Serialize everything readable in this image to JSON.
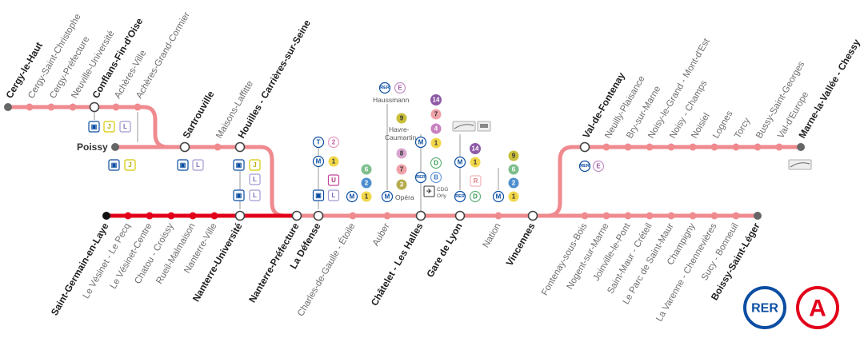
{
  "colors": {
    "line_light": "#ef8a8f",
    "line_dark": "#e2001a",
    "station_light": "#ef8a8f",
    "station_dark": "#e2001a",
    "terminus": "#666666",
    "rer_blue": "#0b4ea2",
    "rer_red": "#e2001a"
  },
  "branches": {
    "cergy": [
      "Cergy-le-Haut",
      "Cergy-Saint-Christophe",
      "Cergy-Préfecture",
      "Neuville-Université",
      "Conflans-Fin-d'Oise",
      "Achères-Ville",
      "Achères-Grand-Cormier",
      "Maisons-Laffitte"
    ],
    "poissy": [
      "Poissy",
      "Sartrouville",
      "Houilles - Carrières-sur-Seine"
    ],
    "saint_germain": [
      "Saint-Germain-en-Laye",
      "Le Vésinet - Le Pecq",
      "Le Vésinet-Centre",
      "Chatou - Croissy",
      "Rueil-Malmaison",
      "Nanterre-Ville",
      "Nanterre-Université"
    ],
    "trunk": [
      "Nanterre-Préfecture",
      "La Défense",
      "Charles-de-Gaulle - Étoile",
      "Auber",
      "Châtelet - Les Halles",
      "Gare de Lyon",
      "Nation",
      "Vincennes"
    ],
    "marne": [
      "Val-de-Fontenay",
      "Neuilly-Plaisance",
      "Bry-sur-Marne",
      "Noisy-le-Grand - Mont-d'Est",
      "Noisy - Champs",
      "Noisiel",
      "Lognes",
      "Torcy",
      "Bussy-Saint-Georges",
      "Val-d'Europe",
      "Marne-la-Vallée - Chessy"
    ],
    "boissy": [
      "Fontenay-sous-Bois",
      "Nogent-sur-Marne",
      "Joinville-le-Pont",
      "Saint-Maur - Créteil",
      "Le Parc de Saint-Maur",
      "Champigny",
      "La Varenne - Chennevières",
      "Sucy - Bonneuil",
      "Boissy-Saint-Léger"
    ]
  },
  "annotations": {
    "haussmann": "Haussmann",
    "havre": "Havre-",
    "caumartin": "Caumartin",
    "opera": "Opéra",
    "cdg": "CDG",
    "orly": "Orly"
  },
  "badges": {
    "rer": "RER",
    "metro": "M",
    "tram": "T",
    "e": "E",
    "l": "L",
    "j": "J",
    "u": "U",
    "r": "R",
    "b": "B",
    "d": "D",
    "n1": "1",
    "n2": "2",
    "n3": "3",
    "n4": "4",
    "n6": "6",
    "n7": "7",
    "n8": "8",
    "n9": "9",
    "n14": "14"
  },
  "logo": {
    "rer": "RER",
    "line": "A"
  }
}
